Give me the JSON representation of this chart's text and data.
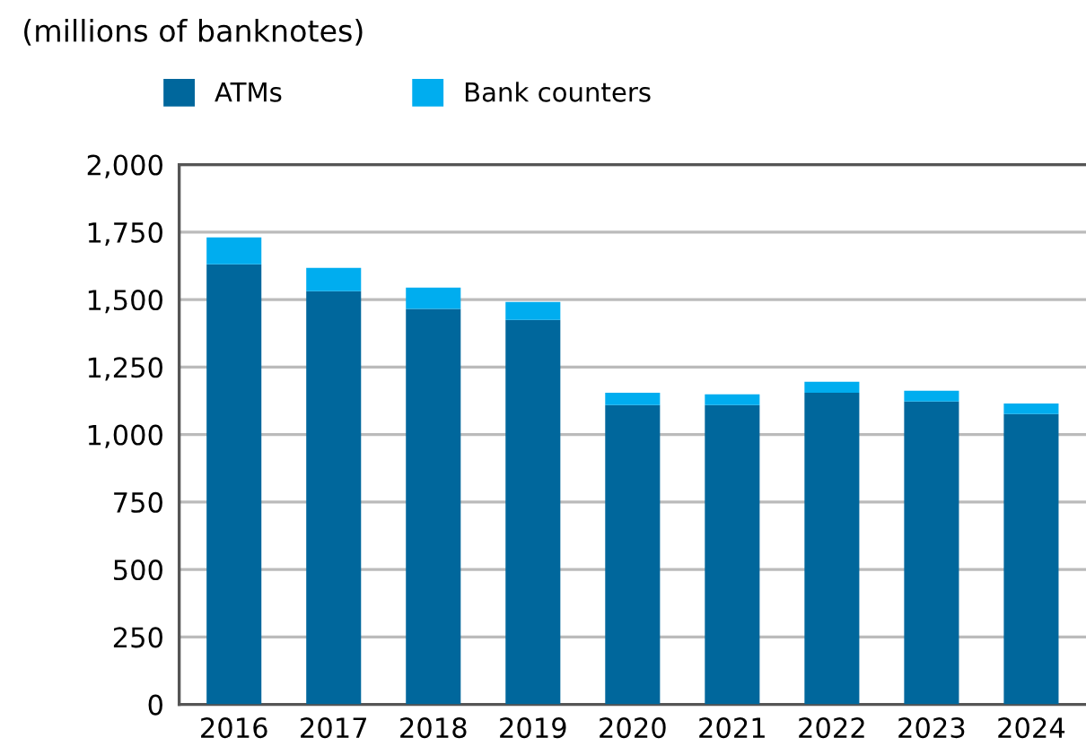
{
  "chart_data": {
    "type": "bar",
    "stacked": true,
    "ylabel": "(millions of banknotes)",
    "categories": [
      "2016",
      "2017",
      "2018",
      "2019",
      "2020",
      "2021",
      "2022",
      "2023",
      "2024"
    ],
    "series": [
      {
        "name": "ATMs",
        "color": "#00679c",
        "values": [
          1631,
          1531,
          1465,
          1425,
          1109,
          1109,
          1155,
          1122,
          1076
        ]
      },
      {
        "name": "Bank counters",
        "color": "#00adef",
        "values": [
          99,
          86,
          79,
          66,
          46,
          40,
          40,
          40,
          39
        ]
      }
    ],
    "ylim": [
      0,
      2000
    ],
    "yticks": [
      0,
      {
        "value": 250,
        "label": "250"
      },
      {
        "value": 500,
        "label": "500"
      },
      {
        "value": 750,
        "label": "750"
      },
      {
        "value": 1000,
        "label": "1,000"
      },
      {
        "value": 1250,
        "label": "1,250"
      },
      {
        "value": 1500,
        "label": "1,500"
      },
      {
        "value": 1750,
        "label": "1,750"
      },
      {
        "value": 2000,
        "label": "2,000"
      }
    ],
    "grid": "y",
    "legend": "top left"
  }
}
